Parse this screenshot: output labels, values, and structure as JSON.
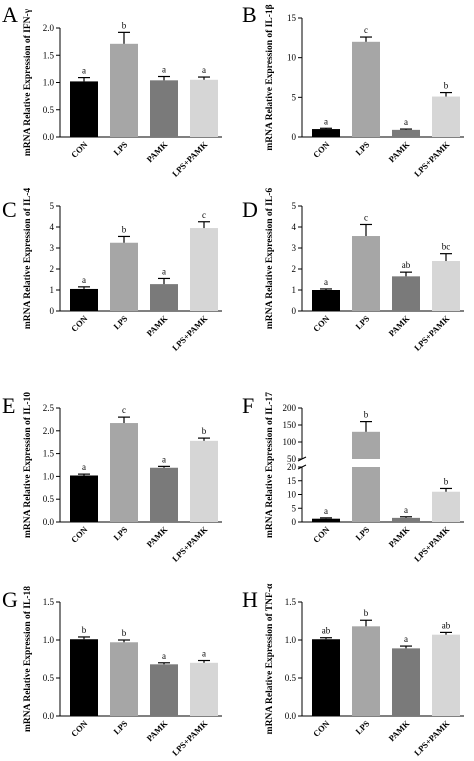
{
  "chart_data": [
    {
      "type": "bar",
      "panel_label": "A",
      "ylabel": "mRNA Relative Expression of  IFN-γ",
      "categories": [
        "CON",
        "LPS",
        "PAMK",
        "LPS+PAMK"
      ],
      "values": [
        1.02,
        1.71,
        1.04,
        1.05
      ],
      "errors": [
        0.07,
        0.21,
        0.07,
        0.05
      ],
      "letters": [
        "a",
        "b",
        "a",
        "a"
      ],
      "colors": [
        "#000000",
        "#a6a6a6",
        "#7a7a7a",
        "#d6d6d6"
      ],
      "ylim": [
        0,
        2.0
      ],
      "yticks": [
        "0.0",
        "0.5",
        "1.0",
        "1.5",
        "2.0"
      ]
    },
    {
      "type": "bar",
      "panel_label": "B",
      "ylabel": "mRNA Relative Expression of  IL-1β",
      "categories": [
        "CON",
        "LPS",
        "PAMK",
        "LPS+PAMK"
      ],
      "values": [
        1.0,
        12.0,
        0.9,
        5.1
      ],
      "errors": [
        0.1,
        0.6,
        0.1,
        0.5
      ],
      "letters": [
        "a",
        "c",
        "a",
        "b"
      ],
      "colors": [
        "#000000",
        "#a6a6a6",
        "#7a7a7a",
        "#d6d6d6"
      ],
      "ylim": [
        0,
        15
      ],
      "yticks": [
        "0",
        "5",
        "10",
        "15"
      ]
    },
    {
      "type": "bar",
      "panel_label": "C",
      "ylabel": "mRNA Relative Expression of  IL-4",
      "categories": [
        "CON",
        "LPS",
        "PAMK",
        "LPS+PAMK"
      ],
      "values": [
        1.05,
        3.25,
        1.28,
        3.95
      ],
      "errors": [
        0.1,
        0.3,
        0.27,
        0.3
      ],
      "letters": [
        "a",
        "b",
        "a",
        "c"
      ],
      "colors": [
        "#000000",
        "#a6a6a6",
        "#7a7a7a",
        "#d6d6d6"
      ],
      "ylim": [
        0,
        5
      ],
      "yticks": [
        "0",
        "1",
        "2",
        "3",
        "4",
        "5"
      ]
    },
    {
      "type": "bar",
      "panel_label": "D",
      "ylabel": "mRNA Relative Expression of  IL-6",
      "categories": [
        "CON",
        "LPS",
        "PAMK",
        "LPS+PAMK"
      ],
      "values": [
        1.0,
        3.57,
        1.65,
        2.38
      ],
      "errors": [
        0.05,
        0.55,
        0.2,
        0.35
      ],
      "letters": [
        "a",
        "c",
        "ab",
        "bc"
      ],
      "colors": [
        "#000000",
        "#a6a6a6",
        "#7a7a7a",
        "#d6d6d6"
      ],
      "ylim": [
        0,
        5
      ],
      "yticks": [
        "0",
        "1",
        "2",
        "3",
        "4",
        "5"
      ]
    },
    {
      "type": "bar",
      "panel_label": "E",
      "ylabel": "mRNA Relative Expression of  IL-10",
      "categories": [
        "CON",
        "LPS",
        "PAMK",
        "LPS+PAMK"
      ],
      "values": [
        1.02,
        2.17,
        1.19,
        1.78
      ],
      "errors": [
        0.03,
        0.13,
        0.03,
        0.06
      ],
      "letters": [
        "a",
        "c",
        "a",
        "b"
      ],
      "colors": [
        "#000000",
        "#a6a6a6",
        "#7a7a7a",
        "#d6d6d6"
      ],
      "ylim": [
        0,
        2.5
      ],
      "yticks": [
        "0.0",
        "0.5",
        "1.0",
        "1.5",
        "2.0",
        "2.5"
      ]
    },
    {
      "type": "bar",
      "panel_label": "F",
      "ylabel": "mRNA Relative Expression of  IL-17",
      "categories": [
        "CON",
        "LPS",
        "PAMK",
        "LPS+PAMK"
      ],
      "values": [
        1.2,
        130,
        1.5,
        11.0
      ],
      "errors": [
        0.3,
        30,
        0.4,
        1.2
      ],
      "letters": [
        "a",
        "b",
        "a",
        "b"
      ],
      "colors": [
        "#000000",
        "#a6a6a6",
        "#7a7a7a",
        "#d6d6d6"
      ],
      "axis_break": {
        "lower": [
          0,
          20
        ],
        "upper": [
          50,
          200
        ]
      },
      "yticks_lower": [
        "0",
        "5",
        "10",
        "15",
        "20"
      ],
      "yticks_upper": [
        "50",
        "100",
        "150",
        "200"
      ]
    },
    {
      "type": "bar",
      "panel_label": "G",
      "ylabel": "mRNA Relative Expression of  IL-18",
      "categories": [
        "CON",
        "LPS",
        "PAMK",
        "LPS+PAMK"
      ],
      "values": [
        1.01,
        0.97,
        0.68,
        0.7
      ],
      "errors": [
        0.03,
        0.03,
        0.02,
        0.03
      ],
      "letters": [
        "b",
        "b",
        "a",
        "a"
      ],
      "colors": [
        "#000000",
        "#a6a6a6",
        "#7a7a7a",
        "#d6d6d6"
      ],
      "ylim": [
        0,
        1.5
      ],
      "yticks": [
        "0.0",
        "0.5",
        "1.0",
        "1.5"
      ]
    },
    {
      "type": "bar",
      "panel_label": "H",
      "ylabel": "mRNA Relative Expression of  TNF-α",
      "categories": [
        "CON",
        "LPS",
        "PAMK",
        "LPS+PAMK"
      ],
      "values": [
        1.01,
        1.18,
        0.89,
        1.07
      ],
      "errors": [
        0.02,
        0.08,
        0.03,
        0.03
      ],
      "letters": [
        "ab",
        "b",
        "a",
        "ab"
      ],
      "colors": [
        "#000000",
        "#a6a6a6",
        "#7a7a7a",
        "#d6d6d6"
      ],
      "ylim": [
        0,
        1.5
      ],
      "yticks": [
        "0.0",
        "0.5",
        "1.0",
        "1.5"
      ]
    }
  ]
}
